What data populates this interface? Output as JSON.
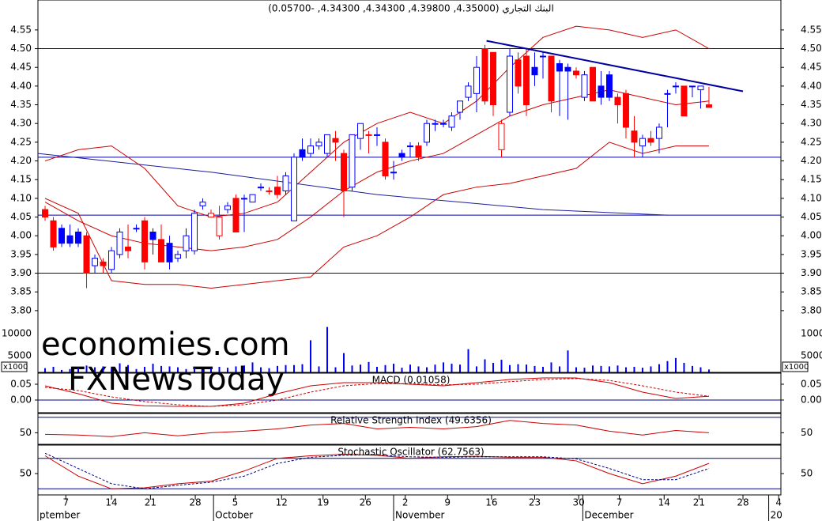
{
  "chart_data": {
    "type": "candlestick",
    "title": "البنك التجاري (4.35000, 4.39800, 4.34300, 4.34300, -0.05700)",
    "xlim": [
      -0.86,
      88.67
    ],
    "xticks": [
      {
        "value": 2.5,
        "label": "7"
      },
      {
        "value": 8,
        "label": "14"
      },
      {
        "value": 12.7,
        "label": "21"
      },
      {
        "value": 18.1,
        "label": "28"
      },
      {
        "value": 22.9,
        "label": "5"
      },
      {
        "value": 28.5,
        "label": "12"
      },
      {
        "value": 33.5,
        "label": "19"
      },
      {
        "value": 38.6,
        "label": "26"
      },
      {
        "value": 43.4,
        "label": "2"
      },
      {
        "value": 48.5,
        "label": "9"
      },
      {
        "value": 53.8,
        "label": "16"
      },
      {
        "value": 59,
        "label": "23"
      },
      {
        "value": 64.3,
        "label": "30"
      },
      {
        "value": 69.2,
        "label": "7"
      },
      {
        "value": 74.6,
        "label": "14"
      },
      {
        "value": 78.8,
        "label": "21"
      },
      {
        "value": 84.1,
        "label": "28"
      },
      {
        "value": 88.4,
        "label": "4"
      }
    ],
    "month_ticks": [
      {
        "value": -0.86,
        "label": "ptember"
      },
      {
        "value": 20.3,
        "label": "October"
      },
      {
        "value": 42,
        "label": "November"
      },
      {
        "value": 64.8,
        "label": "December"
      },
      {
        "value": 87.2,
        "label": "20"
      }
    ],
    "ylim": [
      3.635,
      4.63
    ],
    "yticks": [
      {
        "value": 3.8,
        "label": "3.80"
      },
      3.85,
      {
        "value": 3.9,
        "label": "3.90"
      },
      3.95,
      {
        "value": 4.0,
        "label": "4.00"
      },
      4.05,
      {
        "value": 4.1,
        "label": "4.10"
      },
      4.15,
      {
        "value": 4.2,
        "label": "4.20"
      },
      4.25,
      {
        "value": 4.3,
        "label": "4.30"
      },
      4.35,
      {
        "value": 4.4,
        "label": "4.40"
      },
      4.45,
      {
        "value": 4.5,
        "label": "4.50"
      },
      4.55
    ],
    "colors": {
      "up": "#0000ff",
      "down": "#ff0000",
      "level": "#0000a0"
    },
    "ohlc": [
      [
        4.07,
        4.08,
        4.04,
        4.05
      ],
      [
        4.04,
        4.05,
        3.96,
        3.97
      ],
      [
        4.02,
        4.03,
        3.97,
        3.98
      ],
      [
        4.0,
        4.03,
        3.97,
        3.98
      ],
      [
        4.01,
        4.02,
        3.97,
        3.98
      ],
      [
        4.0,
        4.01,
        3.86,
        3.9
      ],
      [
        3.92,
        3.95,
        3.9,
        3.94
      ],
      [
        3.93,
        3.94,
        3.9,
        3.92
      ],
      [
        3.91,
        3.97,
        3.9,
        3.96
      ],
      [
        3.95,
        4.02,
        3.94,
        4.01
      ],
      [
        3.97,
        4.03,
        3.94,
        3.96
      ],
      [
        4.02,
        4.03,
        4.01,
        4.02
      ],
      [
        4.04,
        4.05,
        3.91,
        3.93
      ],
      [
        4.01,
        4.02,
        3.95,
        3.99
      ],
      [
        3.99,
        4.03,
        3.93,
        3.93
      ],
      [
        3.98,
        4.0,
        3.91,
        3.93
      ],
      [
        3.94,
        3.96,
        3.93,
        3.95
      ],
      [
        3.96,
        4.02,
        3.94,
        4.0
      ],
      [
        3.96,
        4.07,
        3.95,
        4.06
      ],
      [
        4.08,
        4.1,
        4.07,
        4.09
      ],
      [
        4.05,
        4.07,
        4.05,
        4.06
      ],
      [
        4.0,
        4.08,
        3.99,
        4.05
      ],
      [
        4.07,
        4.09,
        4.06,
        4.08
      ],
      [
        4.1,
        4.11,
        4.01,
        4.01
      ],
      [
        4.1,
        4.11,
        4.01,
        4.1
      ],
      [
        4.09,
        4.11,
        4.09,
        4.11
      ],
      [
        4.13,
        4.14,
        4.12,
        4.13
      ],
      [
        4.12,
        4.13,
        4.11,
        4.12
      ],
      [
        4.13,
        4.16,
        4.1,
        4.11
      ],
      [
        4.12,
        4.17,
        4.11,
        4.16
      ],
      [
        4.04,
        4.22,
        4.04,
        4.21
      ],
      [
        4.23,
        4.26,
        4.2,
        4.21
      ],
      [
        4.22,
        4.26,
        4.21,
        4.24
      ],
      [
        4.24,
        4.26,
        4.23,
        4.25
      ],
      [
        4.22,
        4.27,
        4.21,
        4.27
      ],
      [
        4.26,
        4.28,
        4.2,
        4.25
      ],
      [
        4.22,
        4.23,
        4.05,
        4.12
      ],
      [
        4.13,
        4.27,
        4.12,
        4.27
      ],
      [
        4.26,
        4.3,
        4.23,
        4.3
      ],
      [
        4.27,
        4.28,
        4.22,
        4.27
      ],
      [
        4.27,
        4.29,
        4.24,
        4.27
      ],
      [
        4.25,
        4.26,
        4.15,
        4.16
      ],
      [
        4.17,
        4.2,
        4.15,
        4.17
      ],
      [
        4.22,
        4.23,
        4.2,
        4.21
      ],
      [
        4.24,
        4.25,
        4.21,
        4.24
      ],
      [
        4.24,
        4.25,
        4.2,
        4.21
      ],
      [
        4.25,
        4.31,
        4.24,
        4.3
      ],
      [
        4.3,
        4.31,
        4.28,
        4.3
      ],
      [
        4.3,
        4.31,
        4.29,
        4.3
      ],
      [
        4.29,
        4.33,
        4.28,
        4.32
      ],
      [
        4.33,
        4.36,
        4.31,
        4.36
      ],
      [
        4.37,
        4.41,
        4.36,
        4.4
      ],
      [
        4.38,
        4.48,
        4.33,
        4.45
      ],
      [
        4.5,
        4.51,
        4.35,
        4.36
      ],
      [
        4.49,
        4.49,
        4.32,
        4.35
      ],
      [
        4.23,
        4.31,
        4.21,
        4.3
      ],
      [
        4.33,
        4.5,
        4.32,
        4.48
      ],
      [
        4.47,
        4.49,
        4.38,
        4.4
      ],
      [
        4.48,
        4.5,
        4.32,
        4.35
      ],
      [
        4.45,
        4.49,
        4.4,
        4.43
      ],
      [
        4.48,
        4.49,
        4.42,
        4.48
      ],
      [
        4.48,
        4.48,
        4.33,
        4.36
      ],
      [
        4.46,
        4.47,
        4.32,
        4.44
      ],
      [
        4.45,
        4.46,
        4.31,
        4.44
      ],
      [
        4.44,
        4.45,
        4.42,
        4.43
      ],
      [
        4.37,
        4.44,
        4.36,
        4.43
      ],
      [
        4.45,
        4.45,
        4.36,
        4.36
      ],
      [
        4.4,
        4.44,
        4.35,
        4.37
      ],
      [
        4.43,
        4.44,
        4.36,
        4.37
      ],
      [
        4.37,
        4.38,
        4.3,
        4.35
      ],
      [
        4.38,
        4.39,
        4.26,
        4.29
      ],
      [
        4.28,
        4.32,
        4.21,
        4.25
      ],
      [
        4.24,
        4.27,
        4.21,
        4.26
      ],
      [
        4.26,
        4.28,
        4.24,
        4.25
      ],
      [
        4.26,
        4.3,
        4.22,
        4.29
      ],
      [
        4.38,
        4.39,
        4.29,
        4.38
      ],
      [
        4.4,
        4.41,
        4.38,
        4.4
      ],
      [
        4.4,
        4.4,
        4.32,
        4.32
      ],
      [
        4.4,
        4.4,
        4.37,
        4.4
      ],
      [
        4.39,
        4.4,
        4.34,
        4.4
      ],
      [
        4.35,
        4.398,
        4.343,
        4.343
      ]
    ],
    "levels": [
      4.5,
      4.21,
      4.055,
      3.9
    ],
    "trendline": {
      "x": [
        53.2,
        84.1
      ],
      "y": [
        4.521,
        4.386
      ]
    },
    "overlays": [
      {
        "color": "#cc0000",
        "x": [
          0,
          4,
          8,
          12,
          16,
          20,
          24,
          28,
          32,
          36,
          40,
          44,
          48,
          52,
          56,
          60,
          64,
          68,
          72,
          76,
          80
        ],
        "series": [
          {
            "values": [
              4.2,
              4.23,
              4.24,
              4.18,
              4.08,
              4.05,
              4.06,
              4.09,
              4.17,
              4.25,
              4.3,
              4.33,
              4.3,
              4.36,
              4.45,
              4.53,
              4.56,
              4.55,
              4.53,
              4.55,
              4.5
            ]
          },
          {
            "values": [
              4.09,
              4.04,
              4.0,
              3.98,
              3.97,
              3.96,
              3.97,
              3.99,
              4.05,
              4.12,
              4.17,
              4.2,
              4.22,
              4.27,
              4.32,
              4.35,
              4.37,
              4.39,
              4.37,
              4.35,
              4.36
            ]
          },
          {
            "values": [
              4.1,
              4.06,
              3.88,
              3.87,
              3.87,
              3.86,
              3.87,
              3.88,
              3.89,
              3.97,
              4.0,
              4.05,
              4.11,
              4.13,
              4.14,
              4.16,
              4.18,
              4.25,
              4.22,
              4.24,
              4.24
            ]
          }
        ]
      },
      {
        "color": "#1c1ca0",
        "x": [
          -0.86,
          20,
          40,
          60,
          75
        ],
        "series": [
          {
            "values": [
              4.22,
              4.17,
              4.11,
              4.07,
              4.055
            ]
          }
        ]
      }
    ],
    "volume": {
      "unit": "x1000",
      "ylim": [
        1250,
        15000
      ],
      "yticks": [
        5000,
        10000
      ],
      "color": "#0000ff",
      "values": [
        2200,
        2500,
        1800,
        2000,
        2300,
        2800,
        2400,
        2600,
        2100,
        3300,
        2900,
        2000,
        2500,
        3200,
        2700,
        2600,
        2400,
        2000,
        2300,
        1800,
        2200,
        2500,
        2300,
        2600,
        2800,
        3500,
        2400,
        2200,
        2700,
        2900,
        2900,
        3100,
        8500,
        2600,
        11500,
        2400,
        5600,
        2800,
        3000,
        3600,
        2500,
        2900,
        3200,
        2300,
        3000,
        2600,
        2400,
        3000,
        3500,
        3200,
        3000,
        6500,
        2600,
        4200,
        3400,
        4100,
        2900,
        3100,
        3000,
        2700,
        2500,
        3500,
        2600,
        6200,
        2400,
        2300,
        2800,
        2700,
        2600,
        2800,
        2400,
        2500,
        2300,
        2600,
        3100,
        3800,
        4500,
        3400,
        2700,
        2400,
        1900
      ]
    },
    "panels": [
      {
        "type": "line",
        "title": "MACD (0.01058)",
        "ylim": [
          -0.04,
          0.085
        ],
        "yticks": [
          0.05,
          {
            "value": 0,
            "label": "0.00"
          }
        ],
        "levels": [
          0
        ],
        "x": [
          0,
          4,
          8,
          12,
          16,
          20,
          24,
          28,
          32,
          36,
          40,
          44,
          48,
          52,
          56,
          60,
          64,
          68,
          72,
          76,
          80
        ],
        "series": [
          {
            "color": "#cc0000",
            "dash": false,
            "values": [
              0.045,
              0.02,
              -0.01,
              -0.018,
              -0.02,
              -0.02,
              -0.01,
              0.02,
              0.045,
              0.055,
              0.055,
              0.05,
              0.045,
              0.055,
              0.065,
              0.07,
              0.07,
              0.055,
              0.025,
              0.005,
              0.012
            ]
          },
          {
            "color": "#cc0000",
            "dash": true,
            "values": [
              0.04,
              0.03,
              0.01,
              -0.005,
              -0.015,
              -0.02,
              -0.015,
              0.0,
              0.025,
              0.045,
              0.052,
              0.052,
              0.048,
              0.05,
              0.058,
              0.065,
              0.068,
              0.062,
              0.045,
              0.025,
              0.012
            ]
          }
        ]
      },
      {
        "type": "line",
        "title": "Relative Strength Index (49.6356)",
        "ylim": [
          35,
          75
        ],
        "yticks": [
          50
        ],
        "levels": [
          70
        ],
        "x": [
          0,
          4,
          8,
          12,
          16,
          20,
          24,
          28,
          32,
          36,
          40,
          44,
          48,
          52,
          56,
          60,
          64,
          68,
          72,
          76,
          80
        ],
        "series": [
          {
            "color": "#cc0000",
            "dash": false,
            "values": [
              48,
              47,
              45,
              50,
              46,
              50,
              52,
              55,
              60,
              62,
              55,
              57,
              55,
              58,
              66,
              62,
              60,
              52,
              47,
              53,
              50
            ]
          }
        ]
      },
      {
        "type": "line",
        "title": "Stochastic Oscillator (62.7563)",
        "ylim": [
          8,
          106
        ],
        "yticks": [
          50
        ],
        "levels": [
          80,
          20
        ],
        "x": [
          0,
          4,
          8,
          12,
          16,
          20,
          24,
          28,
          32,
          36,
          40,
          44,
          48,
          52,
          56,
          60,
          64,
          68,
          72,
          76,
          80
        ],
        "series": [
          {
            "color": "#cc0000",
            "dash": false,
            "values": [
              85,
              45,
              20,
              22,
              30,
              35,
              55,
              80,
              85,
              88,
              86,
              80,
              83,
              84,
              82,
              82,
              75,
              50,
              30,
              45,
              70
            ]
          },
          {
            "color": "#000080",
            "dash": true,
            "values": [
              90,
              60,
              30,
              20,
              27,
              33,
              45,
              70,
              82,
              86,
              87,
              83,
              82,
              83,
              83,
              83,
              79,
              60,
              38,
              38,
              60
            ]
          }
        ]
      }
    ],
    "watermarks": [
      "economies.com",
      "FXNewsToday"
    ]
  }
}
